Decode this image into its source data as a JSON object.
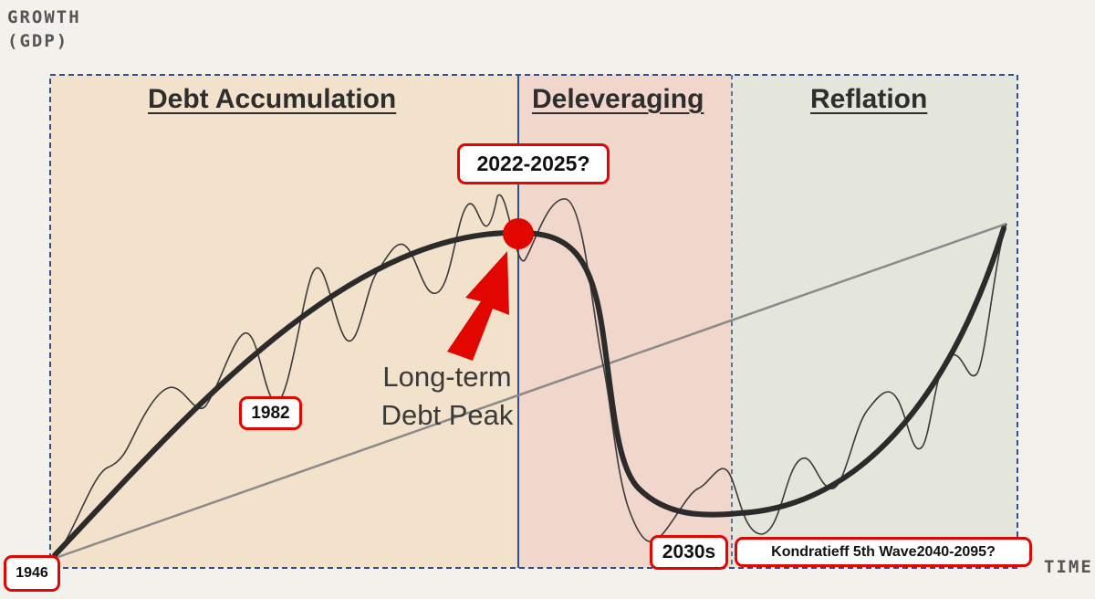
{
  "axes": {
    "y_title_line1": "GROWTH",
    "y_title_line2": "(GDP)",
    "x_title": "TIME"
  },
  "phases": [
    {
      "label": "Debt Accumulation",
      "fill": "#f2e2cb"
    },
    {
      "label": "Deleveraging",
      "fill": "#f1d6cc"
    },
    {
      "label": "Reflation",
      "fill": "#e5e6db"
    }
  ],
  "peak_caption": {
    "line1": "Long-term",
    "line2": "Debt Peak"
  },
  "annotations": {
    "peak_period": "2022-2025?",
    "year_1982": "1982",
    "decade_2030s": "2030s",
    "kondratieff": "Kondratieff 5th Wave2040-2095?",
    "year_1946": "1946"
  },
  "colors": {
    "accent_red": "#e10600",
    "curve": "#2b2b2b",
    "trend": "#8a8a8a",
    "frame": "#2f4f8f"
  }
}
